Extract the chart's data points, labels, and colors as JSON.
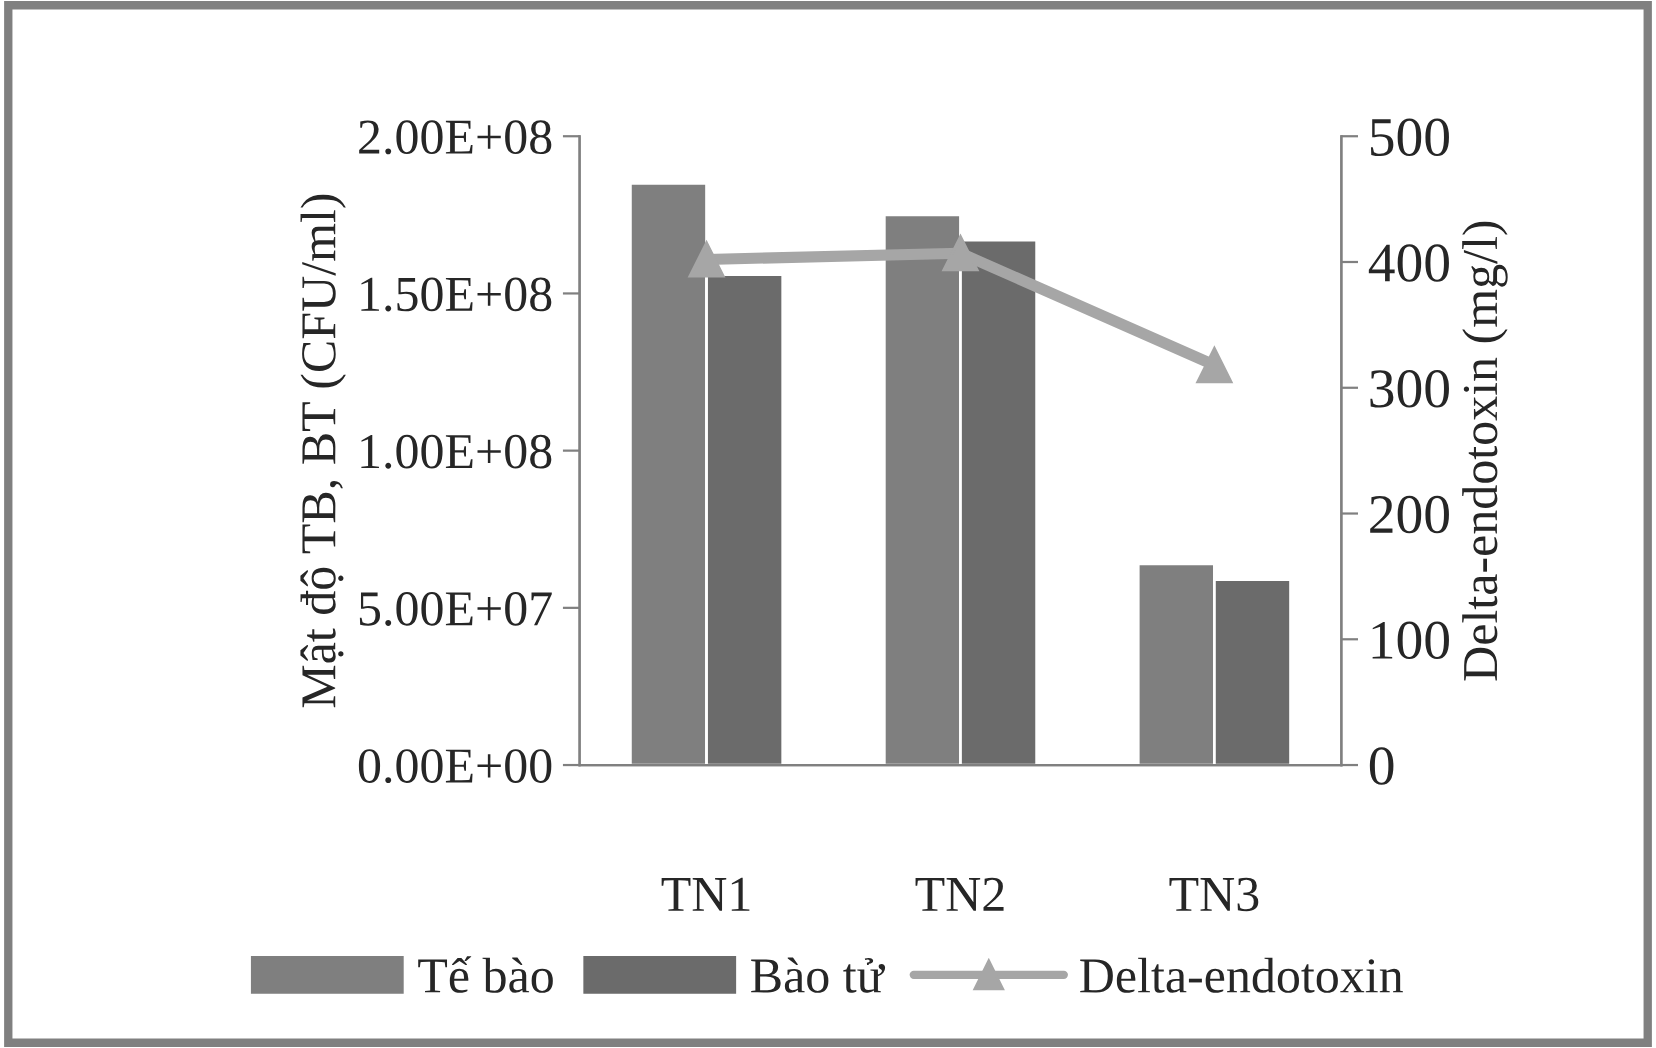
{
  "chart_data": {
    "type": "bar",
    "ylabel": "Mật độ TB, BT (CFU/ml)",
    "y2label": "Delta-endotoxin (mg/l)",
    "categories": [
      "TN1",
      "TN2",
      "TN3"
    ],
    "series": [
      {
        "name": "Tế bào",
        "color": "#7f7f7f",
        "values": [
          185000000,
          175000000,
          64000000
        ]
      },
      {
        "name": "Bào tử",
        "color": "#6b6b6b",
        "values": [
          156000000,
          167000000,
          59000000
        ]
      },
      {
        "name": "Delta-endotoxin",
        "type": "line",
        "axis": "y2",
        "color": "#a6a6a6",
        "marker": "triangle",
        "values": [
          402,
          407,
          318
        ]
      }
    ],
    "ylim": [
      0,
      200000000
    ],
    "yticks": [
      {
        "value": 0,
        "label": "0.00E+00"
      },
      {
        "value": 50000000,
        "label": "5.00E+07"
      },
      {
        "value": 100000000,
        "label": "1.00E+08"
      },
      {
        "value": 150000000,
        "label": "1.50E+08"
      },
      {
        "value": 200000000,
        "label": "2.00E+08"
      }
    ],
    "y2lim": [
      0,
      500
    ],
    "y2ticks": [
      0,
      100,
      200,
      300,
      400,
      500
    ],
    "legend": "bottom",
    "grid": false
  }
}
